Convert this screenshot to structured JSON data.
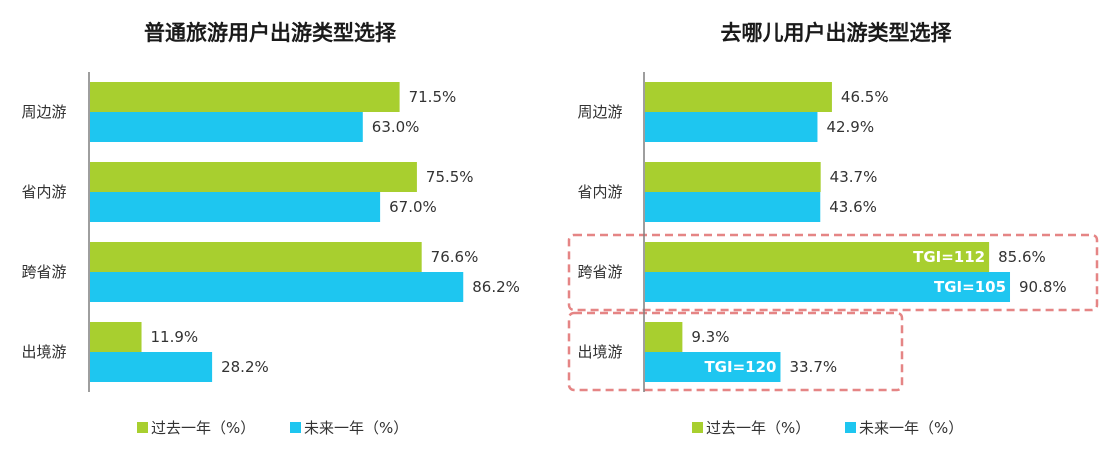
{
  "colors": {
    "past": "#A8CF2F",
    "future": "#1EC6F0",
    "highlight_box": "#E58585",
    "axis": "#7F7F7F"
  },
  "chart_data": [
    {
      "type": "bar",
      "orientation": "horizontal",
      "title": "普通旅游用户出游类型选择",
      "categories": [
        "周边游",
        "省内游",
        "跨省游",
        "出境游"
      ],
      "series": [
        {
          "name": "过去一年（%）",
          "values": [
            71.5,
            75.5,
            76.6,
            11.9
          ],
          "labels": [
            "71.5%",
            "75.5%",
            "76.6%",
            "11.9%"
          ]
        },
        {
          "name": "未来一年（%）",
          "values": [
            63.0,
            67.0,
            86.2,
            28.2
          ],
          "labels": [
            "63.0%",
            "67.0%",
            "86.2%",
            "28.2%"
          ]
        }
      ],
      "xlim": [
        0,
        100
      ],
      "legend": "bottom",
      "grid": false
    },
    {
      "type": "bar",
      "orientation": "horizontal",
      "title": "去哪儿用户出游类型选择",
      "categories": [
        "周边游",
        "省内游",
        "跨省游",
        "出境游"
      ],
      "series": [
        {
          "name": "过去一年（%）",
          "values": [
            46.5,
            43.7,
            85.6,
            9.3
          ],
          "labels": [
            "46.5%",
            "43.7%",
            "85.6%",
            "9.3%"
          ],
          "tgi": [
            "",
            "",
            "TGI=112",
            ""
          ]
        },
        {
          "name": "未来一年（%）",
          "values": [
            42.9,
            43.6,
            90.8,
            33.7
          ],
          "labels": [
            "42.9%",
            "43.6%",
            "90.8%",
            "33.7%"
          ],
          "tgi": [
            "",
            "",
            "TGI=105",
            "TGI=120"
          ]
        }
      ],
      "xlim": [
        0,
        100
      ],
      "legend": "bottom",
      "grid": false,
      "highlighted_categories": [
        "跨省游",
        "出境游"
      ]
    }
  ]
}
